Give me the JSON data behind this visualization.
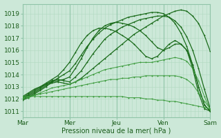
{
  "xlabel": "Pression niveau de la mer( hPa )",
  "ylim": [
    1010.5,
    1019.8
  ],
  "xlim": [
    0,
    96
  ],
  "yticks": [
    1011,
    1012,
    1013,
    1014,
    1015,
    1016,
    1017,
    1018,
    1019
  ],
  "xtick_positions": [
    0,
    24,
    48,
    72,
    96
  ],
  "xtick_labels": [
    "Mar",
    "Mer",
    "Jeu",
    "Ven",
    "Sam"
  ],
  "bg_color": "#cce8d8",
  "grid_minor_color": "#b0d8c0",
  "grid_major_color": "#90c4a8",
  "lines": [
    {
      "x": [
        0,
        3,
        6,
        9,
        12,
        15,
        18,
        21,
        24,
        27,
        30,
        33,
        36,
        39,
        42,
        45,
        48,
        51,
        54,
        57,
        60,
        63,
        66,
        69,
        72,
        75,
        78,
        81,
        84,
        87,
        90,
        93,
        96
      ],
      "y": [
        1012.0,
        1012.2,
        1012.5,
        1012.8,
        1013.1,
        1013.3,
        1013.4,
        1013.3,
        1013.2,
        1013.4,
        1013.7,
        1014.1,
        1014.5,
        1014.9,
        1015.3,
        1015.7,
        1016.1,
        1016.5,
        1016.9,
        1017.3,
        1017.6,
        1017.9,
        1018.2,
        1018.5,
        1018.8,
        1019.0,
        1019.2,
        1019.3,
        1019.2,
        1018.8,
        1018.2,
        1017.2,
        1015.9
      ],
      "color": "#1a6b1a",
      "lw": 0.9
    },
    {
      "x": [
        0,
        3,
        6,
        9,
        12,
        15,
        18,
        21,
        24,
        27,
        30,
        33,
        36,
        39,
        42,
        45,
        48,
        51,
        54,
        57,
        60,
        63,
        66,
        69,
        72,
        75,
        78,
        81,
        84,
        87,
        90,
        93,
        96
      ],
      "y": [
        1012.1,
        1012.3,
        1012.6,
        1012.9,
        1013.2,
        1013.5,
        1013.6,
        1013.5,
        1013.4,
        1013.8,
        1014.3,
        1015.0,
        1015.7,
        1016.3,
        1016.9,
        1017.3,
        1017.6,
        1017.9,
        1018.1,
        1018.3,
        1018.5,
        1018.6,
        1018.7,
        1018.8,
        1018.8,
        1018.7,
        1018.4,
        1017.9,
        1017.1,
        1016.0,
        1014.5,
        1012.8,
        1011.2
      ],
      "color": "#1a6b1a",
      "lw": 0.9
    },
    {
      "x": [
        0,
        3,
        6,
        9,
        12,
        15,
        18,
        21,
        24,
        27,
        30,
        33,
        36,
        39,
        42,
        45,
        48,
        51,
        54,
        57,
        60,
        63,
        66,
        69,
        72,
        75,
        78,
        81,
        84,
        87,
        90,
        93,
        96
      ],
      "y": [
        1011.9,
        1012.1,
        1012.4,
        1012.7,
        1013.0,
        1013.4,
        1013.7,
        1014.0,
        1014.3,
        1014.9,
        1015.6,
        1016.3,
        1016.9,
        1017.4,
        1017.8,
        1018.1,
        1018.3,
        1018.5,
        1018.7,
        1018.8,
        1018.9,
        1019.0,
        1019.1,
        1019.1,
        1019.0,
        1018.7,
        1018.2,
        1017.4,
        1016.3,
        1014.8,
        1013.0,
        1011.5,
        1011.0
      ],
      "color": "#1a6b1a",
      "lw": 0.9
    },
    {
      "x": [
        0,
        3,
        6,
        9,
        12,
        15,
        18,
        21,
        24,
        27,
        30,
        33,
        36,
        39,
        42,
        45,
        48,
        51,
        54,
        57,
        60,
        63,
        66,
        69,
        72,
        75,
        78,
        81,
        84,
        87,
        90,
        93,
        96
      ],
      "y": [
        1012.2,
        1012.5,
        1012.8,
        1013.0,
        1013.2,
        1013.4,
        1013.5,
        1013.6,
        1013.8,
        1014.5,
        1015.3,
        1016.2,
        1017.0,
        1017.6,
        1018.0,
        1018.2,
        1018.3,
        1018.2,
        1018.1,
        1017.9,
        1017.6,
        1017.2,
        1016.7,
        1016.2,
        1016.0,
        1016.2,
        1016.5,
        1016.5,
        1016.0,
        1014.8,
        1013.0,
        1011.5,
        1011.0
      ],
      "color": "#1a6b1a",
      "lw": 0.9
    },
    {
      "x": [
        0,
        3,
        6,
        9,
        12,
        15,
        18,
        21,
        24,
        27,
        30,
        33,
        36,
        39,
        42,
        45,
        48,
        51,
        54,
        57,
        60,
        63,
        66,
        69,
        72,
        75,
        78,
        81,
        84,
        87,
        90,
        93,
        96
      ],
      "y": [
        1012.1,
        1012.4,
        1012.7,
        1013.0,
        1013.3,
        1013.6,
        1013.9,
        1014.4,
        1015.0,
        1015.8,
        1016.6,
        1017.2,
        1017.6,
        1017.8,
        1017.8,
        1017.7,
        1017.5,
        1017.2,
        1016.9,
        1016.5,
        1016.0,
        1015.5,
        1015.3,
        1015.5,
        1016.0,
        1016.5,
        1016.8,
        1016.5,
        1016.0,
        1014.5,
        1012.5,
        1011.2,
        1011.0
      ],
      "color": "#1a6b1a",
      "lw": 0.9
    },
    {
      "x": [
        0,
        3,
        6,
        9,
        12,
        15,
        18,
        21,
        24,
        27,
        30,
        33,
        36,
        39,
        42,
        45,
        48,
        51,
        54,
        57,
        60,
        63,
        66,
        69,
        72,
        75,
        78,
        81,
        84,
        87,
        90,
        93,
        96
      ],
      "y": [
        1012.0,
        1012.1,
        1012.3,
        1012.5,
        1012.7,
        1012.9,
        1013.0,
        1013.1,
        1013.2,
        1013.4,
        1013.6,
        1013.8,
        1014.0,
        1014.2,
        1014.4,
        1014.5,
        1014.6,
        1014.7,
        1014.8,
        1014.9,
        1015.0,
        1015.0,
        1015.0,
        1015.1,
        1015.2,
        1015.3,
        1015.4,
        1015.3,
        1015.1,
        1014.5,
        1013.5,
        1012.2,
        1011.1
      ],
      "color": "#3a9a3a",
      "lw": 0.7
    },
    {
      "x": [
        0,
        3,
        6,
        9,
        12,
        15,
        18,
        21,
        24,
        27,
        30,
        33,
        36,
        39,
        42,
        45,
        48,
        51,
        54,
        57,
        60,
        63,
        66,
        69,
        72,
        75,
        78,
        81,
        84,
        87,
        90,
        93,
        96
      ],
      "y": [
        1012.1,
        1012.2,
        1012.3,
        1012.4,
        1012.5,
        1012.6,
        1012.7,
        1012.8,
        1012.9,
        1013.0,
        1013.1,
        1013.2,
        1013.3,
        1013.4,
        1013.5,
        1013.6,
        1013.6,
        1013.7,
        1013.7,
        1013.8,
        1013.8,
        1013.9,
        1013.9,
        1013.9,
        1013.9,
        1013.9,
        1013.9,
        1013.8,
        1013.6,
        1013.2,
        1012.5,
        1011.8,
        1011.2
      ],
      "color": "#3a9a3a",
      "lw": 0.7
    },
    {
      "x": [
        0,
        3,
        6,
        9,
        12,
        15,
        18,
        21,
        24,
        27,
        30,
        33,
        36,
        39,
        42,
        45,
        48,
        51,
        54,
        57,
        60,
        63,
        66,
        69,
        72,
        75,
        78,
        81,
        84,
        87,
        90,
        93,
        96
      ],
      "y": [
        1012.2,
        1012.2,
        1012.2,
        1012.2,
        1012.2,
        1012.2,
        1012.2,
        1012.2,
        1012.2,
        1012.2,
        1012.2,
        1012.2,
        1012.2,
        1012.2,
        1012.2,
        1012.2,
        1012.2,
        1012.2,
        1012.1,
        1012.1,
        1012.1,
        1012.0,
        1012.0,
        1011.9,
        1011.9,
        1011.8,
        1011.8,
        1011.7,
        1011.6,
        1011.5,
        1011.4,
        1011.3,
        1011.2
      ],
      "color": "#3a9a3a",
      "lw": 0.7
    }
  ]
}
